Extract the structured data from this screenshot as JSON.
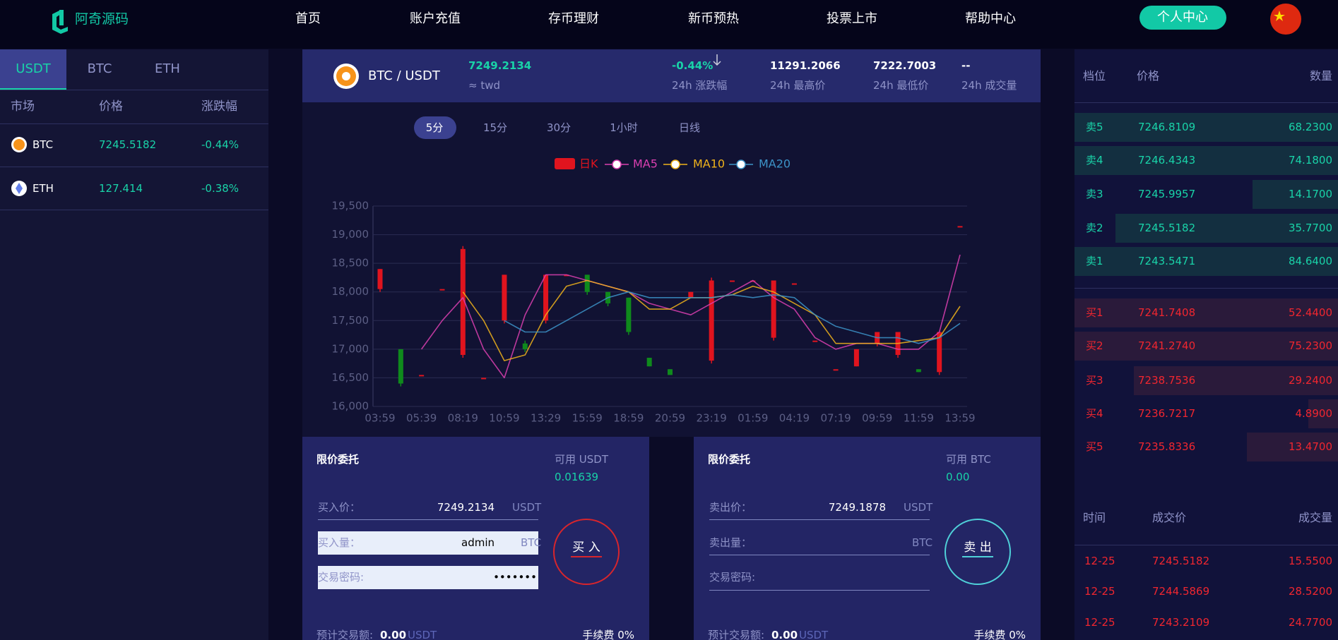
{
  "nav": {
    "brand": "阿奇源码",
    "links": [
      "首页",
      "账户充值",
      "存币理财",
      "新币预热",
      "投票上市",
      "帮助中心"
    ],
    "user": "个人中心"
  },
  "markets": {
    "tabs": [
      "USDT",
      "BTC",
      "ETH"
    ],
    "headers": [
      "市场",
      "价格",
      "涨跌幅"
    ],
    "rows": [
      [
        "BTC",
        "7245.5182",
        "-0.44%"
      ],
      [
        "ETH",
        "127.414",
        "-0.38%"
      ]
    ]
  },
  "ticker": {
    "pair": "BTC / USDT",
    "price": "7249.2134",
    "approx": "≈ twd",
    "stats": [
      {
        "value": "-0.44%",
        "label": "24h 涨跌幅"
      },
      {
        "value": "11291.2066",
        "label": "24h 最高价"
      },
      {
        "value": "7222.7003",
        "label": "24h 最低价"
      },
      {
        "value": "--",
        "label": "24h 成交量"
      }
    ]
  },
  "chart": {
    "type": "candlestick",
    "tabs": [
      "5分",
      "15分",
      "30分",
      "1小时",
      "日线"
    ],
    "candle_legend": {
      "name": "日K",
      "color": "#e0141e"
    },
    "up_color": "#e0141e",
    "down_color": "#0f8a1c",
    "categories": [
      "03:59",
      null,
      "05:39",
      null,
      "08:19",
      null,
      "10:59",
      null,
      "13:29",
      null,
      "15:59",
      null,
      "18:59",
      null,
      "20:59",
      null,
      "23:19",
      null,
      "01:59",
      null,
      "04:19",
      null,
      "07:19",
      null,
      "09:59",
      null,
      "11:59",
      null,
      "13:59"
    ],
    "open": [
      18050,
      17000,
      16550,
      18050,
      16900,
      16500,
      17500,
      17100,
      17500,
      18300,
      18300,
      18000,
      17900,
      16850,
      16650,
      17900,
      16800,
      18200,
      18200,
      17200,
      18150,
      17150,
      16650,
      16700,
      17100,
      16900,
      16650,
      16600,
      19150
    ],
    "close": [
      18400,
      16400,
      16550,
      18050,
      18750,
      16500,
      18300,
      17000,
      18300,
      18300,
      18000,
      17800,
      17300,
      16700,
      16550,
      18000,
      18200,
      18200,
      18200,
      18200,
      18150,
      17150,
      16650,
      17000,
      17300,
      17300,
      16600,
      17300,
      19150
    ],
    "low": [
      18000,
      16350,
      16550,
      18050,
      16850,
      16480,
      17450,
      16950,
      17450,
      18300,
      17950,
      17750,
      17250,
      16700,
      16550,
      17900,
      16750,
      18200,
      18200,
      17150,
      18150,
      17150,
      16650,
      16700,
      17050,
      16850,
      16600,
      16550,
      19150
    ],
    "high": [
      18400,
      17000,
      16550,
      18050,
      18800,
      16500,
      18300,
      17150,
      18300,
      18300,
      18300,
      18000,
      17900,
      16850,
      16650,
      18000,
      18250,
      18200,
      18200,
      18200,
      18150,
      17150,
      16650,
      17000,
      17300,
      17300,
      16650,
      17300,
      19150
    ],
    "series": [
      {
        "name": "MA5",
        "color": "#da3fb0",
        "values": [
          null,
          null,
          17000,
          17500,
          17900,
          17000,
          16500,
          17600,
          18300,
          18300,
          18200,
          18100,
          18000,
          17800,
          17700,
          17600,
          17800,
          18000,
          18200,
          17900,
          17700,
          17200,
          17000,
          17100,
          17100,
          17000,
          17000,
          17300,
          18650
        ]
      },
      {
        "name": "MA10",
        "color": "#f0b31b",
        "values": [
          null,
          null,
          null,
          null,
          18000,
          17500,
          16800,
          16900,
          17600,
          18100,
          18200,
          18100,
          18000,
          17700,
          17700,
          17900,
          17900,
          17950,
          18100,
          18000,
          17800,
          17600,
          17100,
          17100,
          17100,
          17100,
          17150,
          17200,
          17750
        ]
      },
      {
        "name": "MA20",
        "color": "#3c93c8",
        "values": [
          null,
          null,
          null,
          null,
          null,
          null,
          17500,
          17300,
          17300,
          17500,
          17700,
          17900,
          18000,
          17900,
          17900,
          17900,
          17900,
          17950,
          17900,
          17950,
          17900,
          17600,
          17400,
          17300,
          17200,
          17200,
          17100,
          17200,
          17450
        ]
      }
    ],
    "ylim": [
      16000,
      19500
    ],
    "yticks": [
      {
        "value": 16000,
        "label": "16,000"
      },
      {
        "value": 16500,
        "label": "16,500"
      },
      {
        "value": 17000,
        "label": "17,000"
      },
      {
        "value": 17500,
        "label": "17,500"
      },
      {
        "value": 18000,
        "label": "18,000"
      },
      {
        "value": 18500,
        "label": "18,500"
      },
      {
        "value": 19000,
        "label": "19,000"
      },
      {
        "value": 19500,
        "label": "19,500"
      }
    ],
    "grid": true
  },
  "buy": {
    "title": "限价委托",
    "available_label": "可用 USDT",
    "available": "0.01639",
    "fields": [
      {
        "label": "买入价：",
        "value": "7249.2134",
        "unit": "USDT"
      },
      {
        "label": "买入量：",
        "value": "admin",
        "unit": "BTC"
      },
      {
        "label": "交易密码:",
        "value": "•••••••"
      }
    ],
    "button": "买 入",
    "total_label": "预计交易额:",
    "total": "0.00",
    "total_unit": "USDT",
    "fee": "手续费 0%"
  },
  "sell": {
    "title": "限价委托",
    "available_label": "可用 BTC",
    "available": "0.00",
    "fields": [
      {
        "label": "卖出价：",
        "value": "7249.1878",
        "unit": "USDT"
      },
      {
        "label": "卖出量：",
        "unit": "BTC"
      },
      {
        "label": "交易密码:"
      }
    ],
    "button": "卖 出",
    "total_label": "预计交易额:",
    "total": "0.00",
    "total_unit": "USDT",
    "fee": "手续费 0%"
  },
  "orderbook": {
    "headers": [
      "档位",
      "价格",
      "数量"
    ],
    "asks": [
      [
        "卖5",
        "7246.8109",
        "68.2300"
      ],
      [
        "卖4",
        "7246.4343",
        "74.1800"
      ],
      [
        "卖3",
        "7245.9957",
        "14.1700"
      ],
      [
        "卖2",
        "7245.5182",
        "35.7700"
      ],
      [
        "卖1",
        "7243.5471",
        "84.6400"
      ]
    ],
    "bids": [
      [
        "买1",
        "7241.7408",
        "52.4400"
      ],
      [
        "买2",
        "7241.2740",
        "75.2300"
      ],
      [
        "买3",
        "7238.7536",
        "29.2400"
      ],
      [
        "买4",
        "7236.7217",
        "4.8900"
      ],
      [
        "买5",
        "7235.8336",
        "13.4700"
      ]
    ]
  },
  "trades": {
    "headers": [
      "时间",
      "成交价",
      "成交量"
    ],
    "rows": [
      [
        "12-25",
        "7245.5182",
        "15.5500"
      ],
      [
        "12-25",
        "7244.5869",
        "28.5200"
      ],
      [
        "12-25",
        "7243.2109",
        "24.7700"
      ]
    ]
  }
}
